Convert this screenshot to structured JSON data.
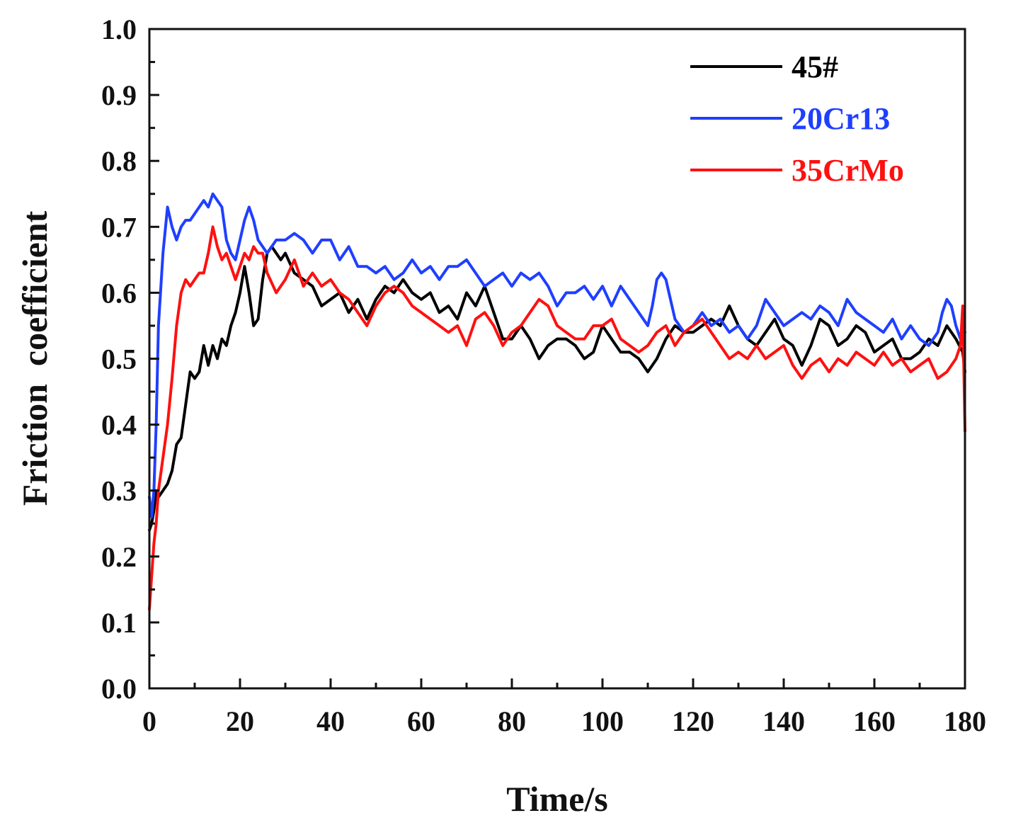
{
  "chart_data": {
    "type": "line",
    "title": "",
    "xlabel": "Time/s",
    "ylabel": "Friction  coefficient",
    "xlim": [
      0,
      180
    ],
    "ylim": [
      0,
      1.0
    ],
    "xticks": [
      "0",
      "20",
      "40",
      "60",
      "80",
      "100",
      "120",
      "140",
      "160",
      "180"
    ],
    "yticks": [
      "0.0",
      "0.1",
      "0.2",
      "0.3",
      "0.4",
      "0.5",
      "0.6",
      "0.7",
      "0.8",
      "0.9",
      "1.0"
    ],
    "grid": false,
    "legend_position": "top-right",
    "series": [
      {
        "name": "45#",
        "color": "#000000",
        "x": [
          0,
          0.5,
          1,
          1.5,
          2,
          3,
          4,
          5,
          6,
          7,
          8,
          9,
          10,
          11,
          12,
          13,
          14,
          15,
          16,
          17,
          18,
          19,
          20,
          21,
          22,
          23,
          24,
          25,
          26,
          27,
          28,
          29,
          30,
          32,
          34,
          36,
          38,
          40,
          42,
          44,
          46,
          48,
          50,
          52,
          54,
          56,
          58,
          60,
          62,
          64,
          66,
          68,
          70,
          72,
          74,
          76,
          78,
          80,
          82,
          84,
          86,
          88,
          90,
          92,
          94,
          96,
          98,
          100,
          102,
          104,
          106,
          108,
          110,
          112,
          114,
          116,
          118,
          120,
          122,
          124,
          126,
          128,
          130,
          132,
          134,
          136,
          138,
          140,
          142,
          144,
          146,
          148,
          150,
          152,
          154,
          156,
          158,
          160,
          162,
          164,
          166,
          168,
          170,
          172,
          174,
          176,
          178,
          179.5,
          180
        ],
        "y": [
          0.24,
          0.25,
          0.27,
          0.3,
          0.29,
          0.3,
          0.31,
          0.33,
          0.37,
          0.38,
          0.43,
          0.48,
          0.47,
          0.48,
          0.52,
          0.49,
          0.52,
          0.5,
          0.53,
          0.52,
          0.55,
          0.57,
          0.6,
          0.64,
          0.6,
          0.55,
          0.56,
          0.62,
          0.66,
          0.67,
          0.66,
          0.65,
          0.66,
          0.63,
          0.62,
          0.61,
          0.58,
          0.59,
          0.6,
          0.57,
          0.59,
          0.56,
          0.59,
          0.61,
          0.6,
          0.62,
          0.6,
          0.59,
          0.6,
          0.57,
          0.58,
          0.56,
          0.6,
          0.58,
          0.61,
          0.57,
          0.53,
          0.53,
          0.55,
          0.53,
          0.5,
          0.52,
          0.53,
          0.53,
          0.52,
          0.5,
          0.51,
          0.55,
          0.53,
          0.51,
          0.51,
          0.5,
          0.48,
          0.5,
          0.53,
          0.55,
          0.54,
          0.54,
          0.55,
          0.56,
          0.55,
          0.58,
          0.55,
          0.53,
          0.52,
          0.54,
          0.56,
          0.53,
          0.52,
          0.49,
          0.52,
          0.56,
          0.55,
          0.52,
          0.53,
          0.55,
          0.54,
          0.51,
          0.52,
          0.53,
          0.5,
          0.5,
          0.51,
          0.53,
          0.52,
          0.55,
          0.53,
          0.51,
          0.48
        ]
      },
      {
        "name": "20Cr13",
        "color": "#1f3fff",
        "x": [
          0,
          0.5,
          1,
          1.5,
          2,
          3,
          4,
          5,
          6,
          7,
          8,
          9,
          10,
          11,
          12,
          13,
          14,
          15,
          16,
          17,
          18,
          19,
          20,
          21,
          22,
          23,
          24,
          25,
          26,
          27,
          28,
          30,
          32,
          34,
          36,
          38,
          40,
          42,
          44,
          46,
          48,
          50,
          52,
          54,
          56,
          58,
          60,
          62,
          64,
          66,
          68,
          70,
          72,
          74,
          76,
          78,
          80,
          82,
          84,
          86,
          88,
          90,
          92,
          94,
          96,
          98,
          100,
          102,
          104,
          106,
          108,
          110,
          111,
          112,
          113,
          114,
          116,
          118,
          120,
          122,
          124,
          126,
          128,
          130,
          132,
          134,
          136,
          138,
          140,
          142,
          144,
          146,
          148,
          150,
          152,
          154,
          156,
          158,
          160,
          162,
          164,
          166,
          168,
          170,
          172,
          174,
          175,
          176,
          177,
          178,
          179,
          180
        ],
        "y": [
          0.29,
          0.26,
          0.3,
          0.4,
          0.55,
          0.66,
          0.73,
          0.7,
          0.68,
          0.7,
          0.71,
          0.71,
          0.72,
          0.73,
          0.74,
          0.73,
          0.75,
          0.74,
          0.73,
          0.68,
          0.66,
          0.65,
          0.68,
          0.71,
          0.73,
          0.71,
          0.68,
          0.67,
          0.66,
          0.67,
          0.68,
          0.68,
          0.69,
          0.68,
          0.66,
          0.68,
          0.68,
          0.65,
          0.67,
          0.64,
          0.64,
          0.63,
          0.64,
          0.62,
          0.63,
          0.65,
          0.63,
          0.64,
          0.62,
          0.64,
          0.64,
          0.65,
          0.63,
          0.61,
          0.62,
          0.63,
          0.61,
          0.63,
          0.62,
          0.63,
          0.61,
          0.58,
          0.6,
          0.6,
          0.61,
          0.59,
          0.61,
          0.58,
          0.61,
          0.59,
          0.57,
          0.55,
          0.58,
          0.62,
          0.63,
          0.62,
          0.56,
          0.54,
          0.55,
          0.57,
          0.55,
          0.56,
          0.54,
          0.55,
          0.53,
          0.55,
          0.59,
          0.57,
          0.55,
          0.56,
          0.57,
          0.56,
          0.58,
          0.57,
          0.55,
          0.59,
          0.57,
          0.56,
          0.55,
          0.54,
          0.56,
          0.53,
          0.55,
          0.53,
          0.52,
          0.54,
          0.57,
          0.59,
          0.58,
          0.55,
          0.53,
          0.54
        ]
      },
      {
        "name": "35CrMo",
        "color": "#ff1010",
        "x": [
          0,
          0.5,
          1,
          1.5,
          2,
          3,
          4,
          5,
          6,
          7,
          8,
          9,
          10,
          11,
          12,
          13,
          14,
          15,
          16,
          17,
          18,
          19,
          20,
          21,
          22,
          23,
          24,
          25,
          26,
          28,
          30,
          32,
          34,
          36,
          38,
          40,
          42,
          44,
          46,
          48,
          50,
          52,
          54,
          56,
          58,
          60,
          62,
          64,
          66,
          68,
          70,
          72,
          74,
          76,
          78,
          80,
          82,
          84,
          86,
          88,
          90,
          92,
          94,
          96,
          98,
          100,
          102,
          104,
          106,
          108,
          110,
          112,
          114,
          116,
          118,
          120,
          122,
          124,
          126,
          128,
          130,
          132,
          134,
          136,
          138,
          140,
          142,
          144,
          146,
          148,
          150,
          152,
          154,
          156,
          158,
          160,
          162,
          164,
          166,
          168,
          170,
          172,
          174,
          176,
          178,
          179,
          179.5,
          180
        ],
        "y": [
          0.12,
          0.17,
          0.22,
          0.25,
          0.3,
          0.35,
          0.4,
          0.47,
          0.55,
          0.6,
          0.62,
          0.61,
          0.62,
          0.63,
          0.63,
          0.66,
          0.7,
          0.67,
          0.65,
          0.66,
          0.64,
          0.62,
          0.64,
          0.66,
          0.65,
          0.67,
          0.66,
          0.66,
          0.63,
          0.6,
          0.62,
          0.65,
          0.61,
          0.63,
          0.61,
          0.62,
          0.6,
          0.59,
          0.57,
          0.55,
          0.58,
          0.6,
          0.61,
          0.6,
          0.58,
          0.57,
          0.56,
          0.55,
          0.54,
          0.55,
          0.52,
          0.56,
          0.57,
          0.55,
          0.52,
          0.54,
          0.55,
          0.57,
          0.59,
          0.58,
          0.55,
          0.54,
          0.53,
          0.53,
          0.55,
          0.55,
          0.56,
          0.53,
          0.52,
          0.51,
          0.52,
          0.54,
          0.55,
          0.52,
          0.54,
          0.55,
          0.56,
          0.54,
          0.52,
          0.5,
          0.51,
          0.5,
          0.52,
          0.5,
          0.51,
          0.52,
          0.49,
          0.47,
          0.49,
          0.5,
          0.48,
          0.5,
          0.49,
          0.51,
          0.5,
          0.49,
          0.51,
          0.49,
          0.5,
          0.48,
          0.49,
          0.5,
          0.47,
          0.48,
          0.5,
          0.52,
          0.58,
          0.39
        ]
      }
    ]
  }
}
